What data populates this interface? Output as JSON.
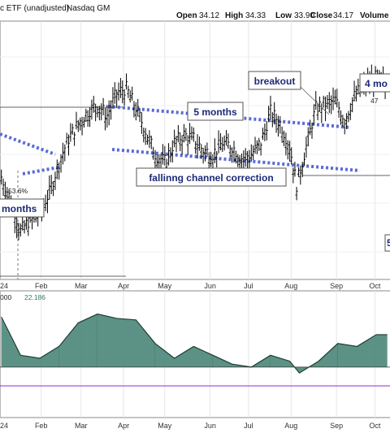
{
  "header": {
    "title": "c ETF (unadjusted)",
    "exchange": "Nasdaq GM",
    "open_label": "Open",
    "open": "34.12",
    "high_label": "High",
    "high": "34.33",
    "low_label": "Low",
    "low": "33.90",
    "close_label": "Close",
    "close": "34.17",
    "volume_label": "Volume"
  },
  "annotations": {
    "breakout": "breakout",
    "five_months": "5 months",
    "falling_channel": "fallinng channel correction",
    "four_months": "4 mo",
    "left_months": "months",
    "pct": "53.6%",
    "right_label_47": "47",
    "right_edge_label": "5"
  },
  "indicator": {
    "label_left": "000",
    "value": "22.186"
  },
  "colors": {
    "price_bar": "#000000",
    "annotation_text": "#1e2a78",
    "trendline": "#5a6bd6",
    "indicator_fill": "#4f8f80",
    "indicator_line": "#1e3d30",
    "indicator_value": "#2e7d5a",
    "zero_line": "#8a2be2"
  },
  "chart_data": [
    {
      "type": "line",
      "series": [
        {
          "values": [
            {
              "x": "2024-01-03",
              "y": 34.0
            },
            {
              "x": "2024-01-10",
              "y": 33.4
            },
            {
              "x": "2024-01-17",
              "y": 32.6
            },
            {
              "x": "2024-01-24",
              "y": 32.9
            },
            {
              "x": "2024-01-31",
              "y": 33.1
            },
            {
              "x": "2024-02-07",
              "y": 33.6
            },
            {
              "x": "2024-02-14",
              "y": 34.4
            },
            {
              "x": "2024-02-21",
              "y": 35.0
            },
            {
              "x": "2024-02-28",
              "y": 35.4
            },
            {
              "x": "2024-03-06",
              "y": 35.7
            },
            {
              "x": "2024-03-13",
              "y": 35.9
            },
            {
              "x": "2024-03-20",
              "y": 35.6
            },
            {
              "x": "2024-03-27",
              "y": 36.2
            },
            {
              "x": "2024-04-03",
              "y": 36.3
            },
            {
              "x": "2024-04-10",
              "y": 35.8
            },
            {
              "x": "2024-04-17",
              "y": 35.2
            },
            {
              "x": "2024-04-24",
              "y": 34.6
            },
            {
              "x": "2024-05-01",
              "y": 34.4
            },
            {
              "x": "2024-05-08",
              "y": 34.9
            },
            {
              "x": "2024-05-15",
              "y": 35.1
            },
            {
              "x": "2024-05-22",
              "y": 35.0
            },
            {
              "x": "2024-05-29",
              "y": 34.7
            },
            {
              "x": "2024-06-05",
              "y": 34.6
            },
            {
              "x": "2024-06-12",
              "y": 34.9
            },
            {
              "x": "2024-06-19",
              "y": 34.8
            },
            {
              "x": "2024-06-26",
              "y": 34.5
            },
            {
              "x": "2024-07-03",
              "y": 34.6
            },
            {
              "x": "2024-07-10",
              "y": 34.9
            },
            {
              "x": "2024-07-17",
              "y": 35.7
            },
            {
              "x": "2024-07-24",
              "y": 35.4
            },
            {
              "x": "2024-07-31",
              "y": 34.8
            },
            {
              "x": "2024-08-05",
              "y": 33.8
            },
            {
              "x": "2024-08-12",
              "y": 34.8
            },
            {
              "x": "2024-08-19",
              "y": 35.8
            },
            {
              "x": "2024-08-26",
              "y": 35.9
            },
            {
              "x": "2024-09-02",
              "y": 36.0
            },
            {
              "x": "2024-09-09",
              "y": 35.5
            },
            {
              "x": "2024-09-16",
              "y": 36.1
            },
            {
              "x": "2024-09-23",
              "y": 36.4
            },
            {
              "x": "2024-09-30",
              "y": 36.6
            },
            {
              "x": "2024-10-07",
              "y": 36.5
            },
            {
              "x": "2024-10-10",
              "y": 36.2
            }
          ]
        }
      ],
      "x_ticks": [
        "24",
        "Feb",
        "Mar",
        "Apr",
        "May",
        "Jun",
        "Jul",
        "Aug",
        "Sep",
        "Oct"
      ],
      "grid": true
    },
    {
      "type": "area",
      "series": [
        {
          "values": [
            {
              "x": "2024-01-03",
              "y": 34
            },
            {
              "x": "2024-01-17",
              "y": 8
            },
            {
              "x": "2024-01-31",
              "y": 6
            },
            {
              "x": "2024-02-14",
              "y": 14
            },
            {
              "x": "2024-02-28",
              "y": 30
            },
            {
              "x": "2024-03-13",
              "y": 36
            },
            {
              "x": "2024-03-27",
              "y": 33
            },
            {
              "x": "2024-04-10",
              "y": 32
            },
            {
              "x": "2024-04-24",
              "y": 16
            },
            {
              "x": "2024-05-08",
              "y": 6
            },
            {
              "x": "2024-05-22",
              "y": 14
            },
            {
              "x": "2024-06-05",
              "y": 8
            },
            {
              "x": "2024-06-19",
              "y": 2
            },
            {
              "x": "2024-07-03",
              "y": 0
            },
            {
              "x": "2024-07-17",
              "y": 8
            },
            {
              "x": "2024-07-31",
              "y": 4
            },
            {
              "x": "2024-08-07",
              "y": -4
            },
            {
              "x": "2024-08-21",
              "y": 4
            },
            {
              "x": "2024-09-04",
              "y": 16
            },
            {
              "x": "2024-09-18",
              "y": 14
            },
            {
              "x": "2024-10-02",
              "y": 22
            },
            {
              "x": "2024-10-10",
              "y": 22
            }
          ]
        }
      ],
      "x_ticks": [
        "24",
        "Feb",
        "Mar",
        "Apr",
        "May",
        "Jun",
        "Jul",
        "Aug",
        "Sep",
        "Oct"
      ]
    }
  ]
}
